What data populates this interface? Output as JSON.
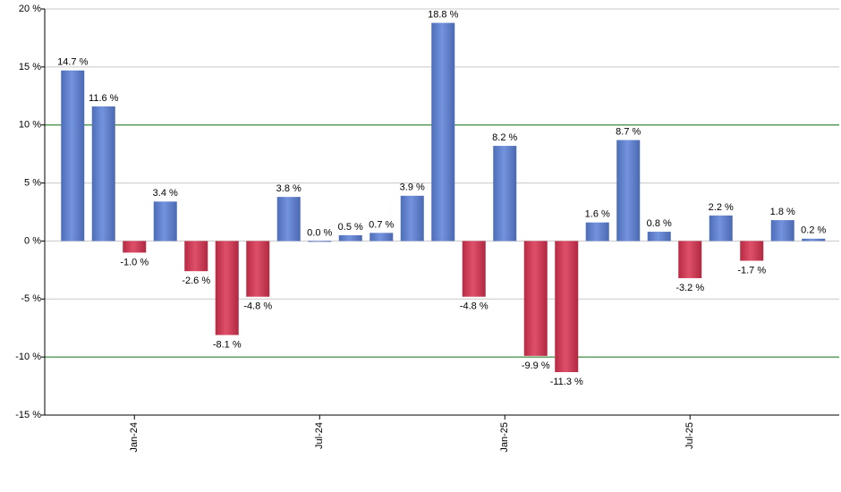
{
  "chart_data": {
    "type": "bar",
    "categories": [
      null,
      null,
      "Jan-24",
      null,
      null,
      null,
      null,
      null,
      "Jul-24",
      null,
      null,
      null,
      null,
      null,
      "Jan-25",
      null,
      null,
      null,
      null,
      null,
      "Jul-25",
      null,
      null,
      null,
      null
    ],
    "values": [
      14.7,
      11.6,
      -1.0,
      3.4,
      -2.6,
      -8.1,
      -4.8,
      3.8,
      0.0,
      0.5,
      0.7,
      3.9,
      18.8,
      -4.8,
      8.2,
      -9.9,
      -11.3,
      1.6,
      8.7,
      0.8,
      -3.2,
      2.2,
      -1.7,
      1.8,
      0.2
    ],
    "value_labels": [
      "14.7 %",
      "11.6 %",
      "-1.0 %",
      "3.4 %",
      "-2.6 %",
      "-8.1 %",
      "-4.8 %",
      "3.8 %",
      "0.0 %",
      "0.5 %",
      "0.7 %",
      "3.9 %",
      "18.8 %",
      "-4.8 %",
      "8.2 %",
      "-9.9 %",
      "-11.3 %",
      "1.6 %",
      "8.7 %",
      "0.8 %",
      "-3.2 %",
      "2.2 %",
      "-1.7 %",
      "1.8 %",
      "0.2 %"
    ],
    "positive_color": "#5b80d8",
    "negative_color": "#d8314f",
    "ylim": [
      -15,
      20
    ],
    "yticks": [
      {
        "value": -15,
        "label": "-15 %"
      },
      {
        "value": -10,
        "label": "-10 %"
      },
      {
        "value": -5,
        "label": "-5 %"
      },
      {
        "value": 0,
        "label": "0 %"
      },
      {
        "value": 5,
        "label": "5 %"
      },
      {
        "value": 10,
        "label": "10 %"
      },
      {
        "value": 15,
        "label": "15 %"
      },
      {
        "value": 20,
        "label": "20 %"
      }
    ],
    "grid": true,
    "grid_color": "#c8c8c8",
    "reference_lines": [
      10,
      -10
    ],
    "reference_color": "#1a7a1a"
  }
}
